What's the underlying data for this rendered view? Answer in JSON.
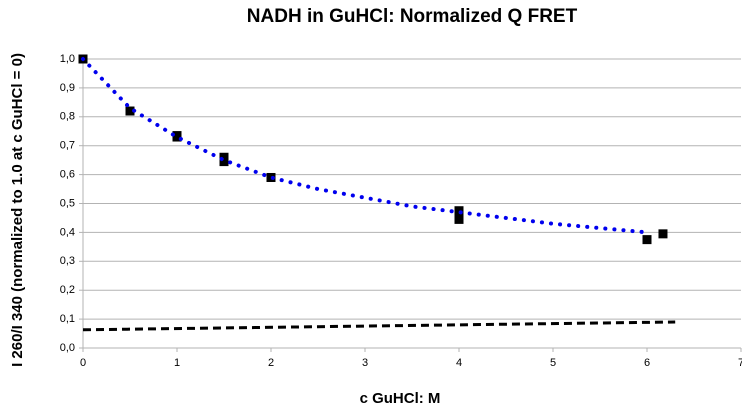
{
  "chart_data": {
    "type": "scatter",
    "title": "NADH in GuHCl: Normalized Q FRET",
    "xlabel": "c GuHCl: M",
    "ylabel": "I 260/I 340 (normalized to 1.0 at c GuHCl = 0)",
    "xlim": [
      0,
      7
    ],
    "xticks": [
      0,
      1,
      2,
      3,
      4,
      5,
      6,
      7
    ],
    "ylim": [
      0,
      1
    ],
    "yticks": [
      {
        "value": 0,
        "label": "0,0"
      },
      {
        "value": 0.1,
        "label": "0,1"
      },
      {
        "value": 0.2,
        "label": "0,2"
      },
      {
        "value": 0.3,
        "label": "0,3"
      },
      {
        "value": 0.4,
        "label": "0,4"
      },
      {
        "value": 0.5,
        "label": "0,5"
      },
      {
        "value": 0.6,
        "label": "0,6"
      },
      {
        "value": 0.7,
        "label": "0,7"
      },
      {
        "value": 0.8,
        "label": "0,8"
      },
      {
        "value": 0.9,
        "label": "0,9"
      },
      {
        "value": 1,
        "label": "1,0"
      }
    ],
    "grid": true,
    "series": [
      {
        "mode": "markers",
        "color": "#000000",
        "x": [
          0,
          0.5,
          1,
          1,
          1.5,
          1.5,
          2,
          4,
          4,
          6,
          6.17
        ],
        "values": [
          1.0,
          0.82,
          0.735,
          0.73,
          0.66,
          0.645,
          0.59,
          0.475,
          0.445,
          0.375,
          0.395
        ]
      },
      {
        "mode": "line",
        "dash": "dotted",
        "color": "#0000ee",
        "x": [
          0,
          0.5,
          1,
          1.5,
          2,
          2.5,
          3,
          3.5,
          4,
          4.5,
          5,
          5.5,
          6
        ],
        "values": [
          1.0,
          0.83,
          0.73,
          0.65,
          0.59,
          0.55,
          0.52,
          0.49,
          0.47,
          0.45,
          0.43,
          0.415,
          0.4
        ]
      },
      {
        "mode": "line",
        "dash": "dashed",
        "color": "#000000",
        "x": [
          0,
          6.3
        ],
        "values": [
          0.063,
          0.09
        ]
      }
    ]
  }
}
